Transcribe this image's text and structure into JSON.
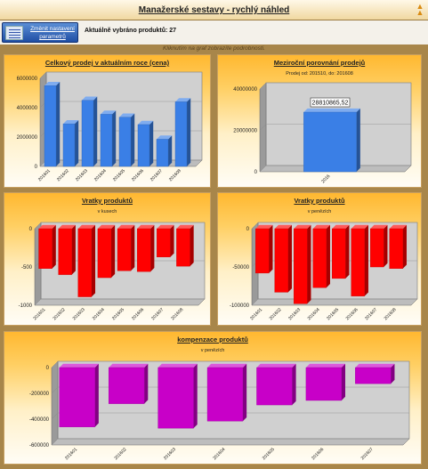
{
  "window": {
    "title": "Manažerské sestavy - rychlý náhled",
    "collapse_icon": "double-chevron-up-icon"
  },
  "toolbar": {
    "settings_button_label": "Změnit nastavení parametrů",
    "settings_icon": "report-settings-icon",
    "selected_products_text": "Aktuálně vybráno produktů: 27"
  },
  "hint": "Kliknutím na graf zobrazíte podrobnosti.",
  "colors": {
    "blue": "#3a7fe6",
    "red": "#ff0000",
    "magenta": "#c800c8",
    "panel_top": "#ffb830"
  },
  "chart_data": [
    {
      "id": "total-sales",
      "type": "bar",
      "title": "Celkový prodej v aktuálním roce (cena)",
      "subtitle": "",
      "categories": [
        "201601",
        "201602",
        "201603",
        "201604",
        "201605",
        "201606",
        "201607",
        "201608"
      ],
      "values": [
        5500000,
        2900000,
        4500000,
        3550000,
        3350000,
        2850000,
        1850000,
        4400000
      ],
      "ylim": [
        0,
        6000000
      ],
      "yticks": [
        0,
        2000000,
        4000000,
        6000000
      ],
      "color": "#3a7fe6"
    },
    {
      "id": "yoy-comparison",
      "type": "bar",
      "title": "Meziroční porovnání prodejů",
      "subtitle": "Prodej od: 201510, do: 201608",
      "categories": [
        "2016"
      ],
      "values": [
        28810865.52
      ],
      "data_labels": [
        "28810865,52"
      ],
      "ylim": [
        0,
        40000000
      ],
      "yticks": [
        0,
        20000000,
        40000000
      ],
      "color": "#3a7fe6"
    },
    {
      "id": "returns-units",
      "type": "bar",
      "title": "Vratky produktů",
      "subtitle": "v kusech",
      "categories": [
        "201601",
        "201602",
        "201603",
        "201604",
        "201605",
        "201606",
        "201607",
        "201608"
      ],
      "values": [
        -520,
        -600,
        -890,
        -640,
        -550,
        -560,
        -370,
        -490
      ],
      "ylim": [
        -1000,
        0
      ],
      "yticks": [
        0,
        -500,
        -1000
      ],
      "color": "#ff0000"
    },
    {
      "id": "returns-money",
      "type": "bar",
      "title": "Vratky produktů",
      "subtitle": "v penězích",
      "categories": [
        "201601",
        "201602",
        "201603",
        "201604",
        "201605",
        "201606",
        "201607",
        "201608"
      ],
      "values": [
        -58000,
        -83000,
        -98000,
        -77000,
        -65000,
        -88000,
        -50000,
        -52000
      ],
      "ylim": [
        -100000,
        0
      ],
      "yticks": [
        0,
        -50000,
        -100000
      ],
      "color": "#ff0000"
    },
    {
      "id": "compensation",
      "type": "bar",
      "title": "kompenzace produktů",
      "subtitle": "v penězích",
      "categories": [
        "201601",
        "201602",
        "201603",
        "201604",
        "201605",
        "201606",
        "201607"
      ],
      "values": [
        -460000,
        -280000,
        -470000,
        -415000,
        -290000,
        -255000,
        -125000
      ],
      "ylim": [
        -600000,
        0
      ],
      "yticks": [
        0,
        -200000,
        -400000,
        -600000
      ],
      "color": "#c800c8"
    }
  ]
}
